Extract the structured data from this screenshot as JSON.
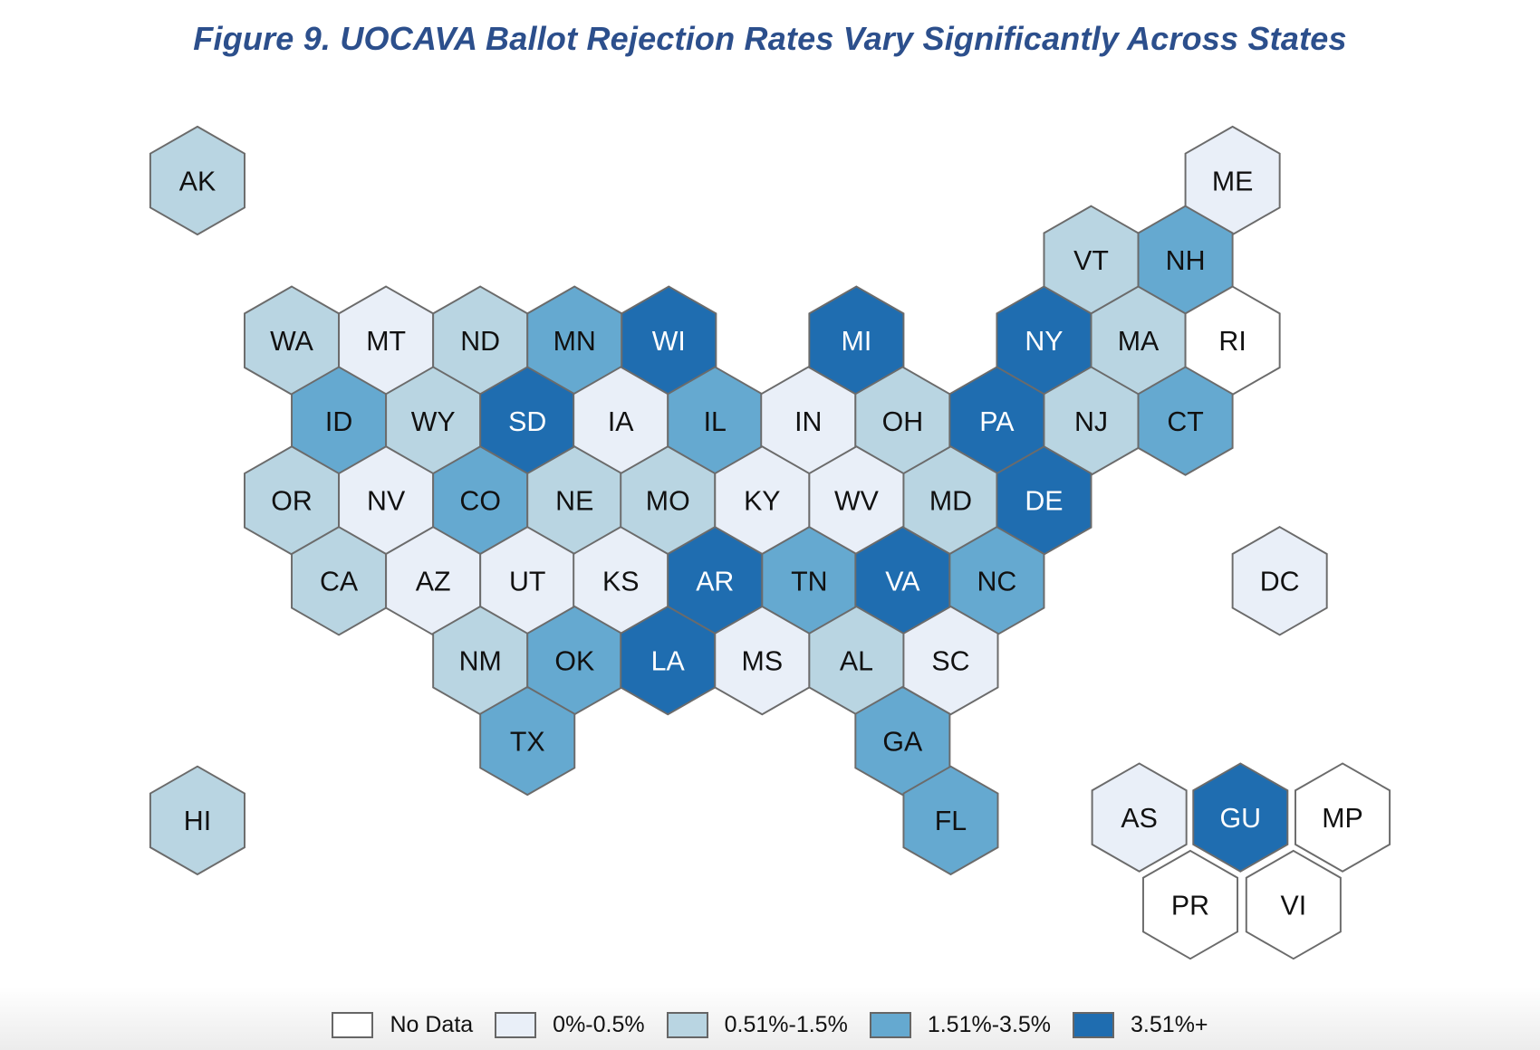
{
  "title": "Figure 9. UOCAVA Ballot Rejection Rates Vary Significantly Across States",
  "chart_data": {
    "type": "heatmap",
    "subtype": "hex tile map",
    "title": "Figure 9. UOCAVA Ballot Rejection Rates Vary Significantly Across States",
    "legend": [
      {
        "label": "No Data",
        "color": "#ffffff"
      },
      {
        "label": "0%-0.5%",
        "color": "#e9eff8"
      },
      {
        "label": "0.51%-1.5%",
        "color": "#b9d5e2"
      },
      {
        "label": "1.51%-3.5%",
        "color": "#65a9d0"
      },
      {
        "label": "3.51%+",
        "color": "#1f6db0"
      }
    ],
    "legend_position": "bottom",
    "states": [
      {
        "code": "AK",
        "cat": 2
      },
      {
        "code": "ME",
        "cat": 1
      },
      {
        "code": "VT",
        "cat": 2
      },
      {
        "code": "NH",
        "cat": 3
      },
      {
        "code": "WA",
        "cat": 2
      },
      {
        "code": "MT",
        "cat": 1
      },
      {
        "code": "ND",
        "cat": 2
      },
      {
        "code": "MN",
        "cat": 3
      },
      {
        "code": "WI",
        "cat": 4
      },
      {
        "code": "MI",
        "cat": 4
      },
      {
        "code": "NY",
        "cat": 4
      },
      {
        "code": "MA",
        "cat": 2
      },
      {
        "code": "RI",
        "cat": 0
      },
      {
        "code": "ID",
        "cat": 3
      },
      {
        "code": "WY",
        "cat": 2
      },
      {
        "code": "SD",
        "cat": 4
      },
      {
        "code": "IA",
        "cat": 1
      },
      {
        "code": "IL",
        "cat": 3
      },
      {
        "code": "IN",
        "cat": 1
      },
      {
        "code": "OH",
        "cat": 2
      },
      {
        "code": "PA",
        "cat": 4
      },
      {
        "code": "NJ",
        "cat": 2
      },
      {
        "code": "CT",
        "cat": 3
      },
      {
        "code": "OR",
        "cat": 2
      },
      {
        "code": "NV",
        "cat": 1
      },
      {
        "code": "CO",
        "cat": 3
      },
      {
        "code": "NE",
        "cat": 2
      },
      {
        "code": "MO",
        "cat": 2
      },
      {
        "code": "KY",
        "cat": 1
      },
      {
        "code": "WV",
        "cat": 1
      },
      {
        "code": "MD",
        "cat": 2
      },
      {
        "code": "DE",
        "cat": 4
      },
      {
        "code": "CA",
        "cat": 2
      },
      {
        "code": "AZ",
        "cat": 1
      },
      {
        "code": "UT",
        "cat": 1
      },
      {
        "code": "KS",
        "cat": 1
      },
      {
        "code": "AR",
        "cat": 4
      },
      {
        "code": "TN",
        "cat": 3
      },
      {
        "code": "VA",
        "cat": 4
      },
      {
        "code": "NC",
        "cat": 3
      },
      {
        "code": "DC",
        "cat": 1
      },
      {
        "code": "NM",
        "cat": 2
      },
      {
        "code": "OK",
        "cat": 3
      },
      {
        "code": "LA",
        "cat": 4
      },
      {
        "code": "MS",
        "cat": 1
      },
      {
        "code": "AL",
        "cat": 2
      },
      {
        "code": "SC",
        "cat": 1
      },
      {
        "code": "TX",
        "cat": 3
      },
      {
        "code": "GA",
        "cat": 3
      },
      {
        "code": "HI",
        "cat": 2
      },
      {
        "code": "FL",
        "cat": 3
      },
      {
        "code": "AS",
        "cat": 1
      },
      {
        "code": "GU",
        "cat": 4
      },
      {
        "code": "MP",
        "cat": 0
      },
      {
        "code": "PR",
        "cat": 0
      },
      {
        "code": "VI",
        "cat": 0
      }
    ]
  }
}
